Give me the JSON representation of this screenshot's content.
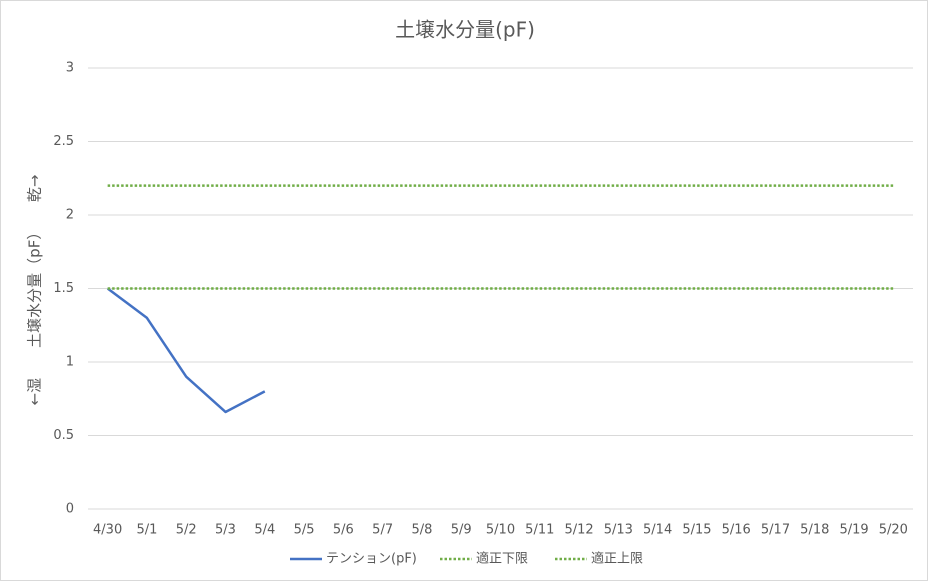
{
  "chart_data": {
    "type": "line",
    "title": "土壌水分量(pF)",
    "y_label": "←湿　　土壌水分量（pF）　　乾→",
    "categories": [
      "4/30",
      "5/1",
      "5/2",
      "5/3",
      "5/4",
      "5/5",
      "5/6",
      "5/7",
      "5/8",
      "5/9",
      "5/10",
      "5/11",
      "5/12",
      "5/13",
      "5/14",
      "5/15",
      "5/16",
      "5/17",
      "5/18",
      "5/19",
      "5/20"
    ],
    "series": [
      {
        "name": "テンション(pF)",
        "color": "#4472c4",
        "style": "solid",
        "values": [
          1.5,
          1.3,
          0.9,
          0.66,
          0.8,
          null,
          null,
          null,
          null,
          null,
          null,
          null,
          null,
          null,
          null,
          null,
          null,
          null,
          null,
          null,
          null
        ]
      },
      {
        "name": "適正下限",
        "color": "#70ad47",
        "style": "dotted",
        "values": [
          1.5,
          1.5,
          1.5,
          1.5,
          1.5,
          1.5,
          1.5,
          1.5,
          1.5,
          1.5,
          1.5,
          1.5,
          1.5,
          1.5,
          1.5,
          1.5,
          1.5,
          1.5,
          1.5,
          1.5,
          1.5
        ]
      },
      {
        "name": "適正上限",
        "color": "#70ad47",
        "style": "dotted",
        "values": [
          2.2,
          2.2,
          2.2,
          2.2,
          2.2,
          2.2,
          2.2,
          2.2,
          2.2,
          2.2,
          2.2,
          2.2,
          2.2,
          2.2,
          2.2,
          2.2,
          2.2,
          2.2,
          2.2,
          2.2,
          2.2
        ]
      }
    ],
    "ylim": [
      0,
      3
    ],
    "yticks": [
      0,
      0.5,
      1,
      1.5,
      2,
      2.5,
      3
    ],
    "grid": true,
    "legend": "bottom"
  }
}
